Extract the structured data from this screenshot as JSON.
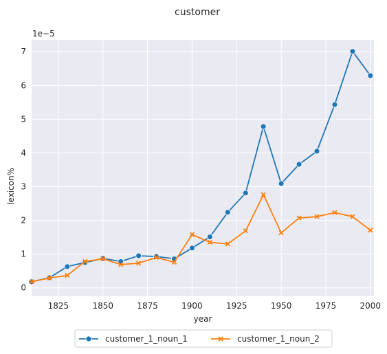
{
  "chart_data": {
    "type": "line",
    "title": "customer",
    "xlabel": "year",
    "ylabel": "lexicon%",
    "y_scale_label": "1e−5",
    "xlim": [
      1810,
      2002
    ],
    "ylim": [
      -0.25,
      7.35
    ],
    "x_ticks": [
      1825,
      1850,
      1875,
      1900,
      1925,
      1950,
      1975,
      2000
    ],
    "y_ticks": [
      0,
      1,
      2,
      3,
      4,
      5,
      6,
      7
    ],
    "grid": true,
    "legend_position": "bottom-center",
    "background": "#eaeaf2",
    "x": [
      1810,
      1820,
      1830,
      1840,
      1850,
      1860,
      1870,
      1880,
      1890,
      1900,
      1910,
      1920,
      1930,
      1940,
      1950,
      1960,
      1970,
      1980,
      1990,
      2000
    ],
    "series": [
      {
        "name": "customer_1_noun_1",
        "color": "#1f77b4",
        "marker": "circle",
        "values": [
          0.18,
          0.3,
          0.63,
          0.75,
          0.87,
          0.78,
          0.95,
          0.93,
          0.86,
          1.18,
          1.51,
          2.24,
          2.81,
          4.78,
          3.09,
          3.66,
          4.05,
          5.43,
          7.01,
          6.29
        ]
      },
      {
        "name": "customer_1_noun_2",
        "color": "#ff7f0e",
        "marker": "x",
        "values": [
          0.18,
          0.29,
          0.37,
          0.78,
          0.86,
          0.69,
          0.73,
          0.9,
          0.76,
          1.58,
          1.35,
          1.3,
          1.69,
          2.76,
          1.63,
          2.07,
          2.11,
          2.23,
          2.11,
          1.71
        ]
      }
    ]
  }
}
